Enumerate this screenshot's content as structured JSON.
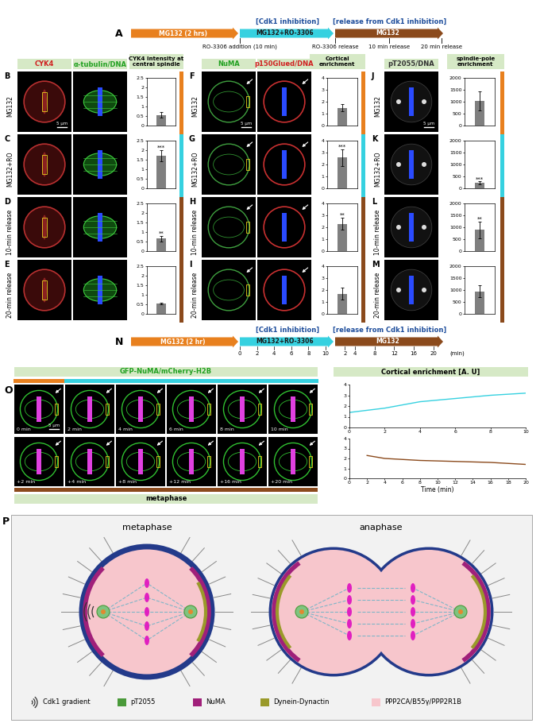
{
  "timeline_A": {
    "label": "A",
    "segments": [
      {
        "text": "MG132 (2 hrs)",
        "color": "#e8801e"
      },
      {
        "text": "MG132+RO-3306",
        "color": "#36d1e0"
      },
      {
        "text": "MG132",
        "color": "#8b4a1c"
      }
    ],
    "headers": [
      "[Cdk1 inhibition]",
      "[release from Cdk1 inhibition]"
    ],
    "events": [
      "RO-3306 addition (10 min)",
      "RO-3306 release",
      "10 min release",
      "20 min release"
    ]
  },
  "timeline_N": {
    "label": "N",
    "segments": [
      {
        "text": "MG132 (2 hr)",
        "color": "#e8801e"
      },
      {
        "text": "MG132+RO-3306",
        "color": "#36d1e0"
      },
      {
        "text": "MG132",
        "color": "#8b4a1c"
      }
    ],
    "headers": [
      "[Cdk1 inhibition]",
      "[release from Cdk1 inhibition]"
    ],
    "ticks_inhibition": [
      0,
      2,
      4,
      6,
      8,
      10
    ],
    "ticks_release": [
      2,
      4,
      8,
      12,
      16,
      20
    ],
    "unit": "(min)"
  },
  "chart_data": [
    {
      "type": "bar",
      "panels": [
        "B",
        "C",
        "D",
        "E"
      ],
      "image_headers": [
        "CYK4",
        "α-tubulin/DNA"
      ],
      "title": "CYK4 intensity at central spindle",
      "categories": [
        "MG132",
        "MG132+RO",
        "10-min release",
        "20-min release"
      ],
      "values": [
        0.55,
        1.7,
        0.65,
        0.55
      ],
      "errors": [
        0.15,
        0.3,
        0.15,
        0.05
      ],
      "annotations": [
        null,
        "***",
        "**",
        null
      ],
      "color": "#7f7f7f",
      "ylim": [
        0,
        2.5
      ],
      "yticks": [
        0,
        0.5,
        1,
        1.5,
        2,
        2.5
      ],
      "scale_bar": "5 μm"
    },
    {
      "type": "bar",
      "panels": [
        "F",
        "G",
        "H",
        "I"
      ],
      "image_headers": [
        "NuMA",
        "p150Glued/DNA"
      ],
      "title": "Cortical enrichment",
      "categories": [
        "MG132",
        "MG132+RO",
        "10-min release",
        "20-min release"
      ],
      "values": [
        1.5,
        2.6,
        2.3,
        1.7
      ],
      "errors": [
        0.3,
        0.7,
        0.5,
        0.5
      ],
      "annotations": [
        null,
        "***",
        "**",
        null
      ],
      "color": "#7f7f7f",
      "ylim": [
        0,
        4
      ],
      "yticks": [
        0,
        1,
        2,
        3,
        4
      ],
      "scale_bar": "5 μm"
    },
    {
      "type": "bar",
      "panels": [
        "J",
        "K",
        "L",
        "M"
      ],
      "image_headers": [
        "pT2055/DNA"
      ],
      "title": "spindle-pole enrichment",
      "categories": [
        "MG132",
        "MG132+RO",
        "10-min release",
        "20-min release"
      ],
      "values": [
        1050,
        230,
        900,
        950
      ],
      "errors": [
        400,
        60,
        350,
        250
      ],
      "annotations": [
        null,
        "***",
        "**",
        null
      ],
      "color": "#7f7f7f",
      "ylim": [
        0,
        2000
      ],
      "yticks": [
        0,
        500,
        1000,
        1500,
        2000
      ],
      "scale_bar": "5 μm"
    },
    {
      "type": "line",
      "title": "Cortical enrichment [A. U]",
      "x": [
        0,
        2,
        4,
        6,
        8,
        10
      ],
      "values": [
        1.4,
        1.8,
        2.4,
        2.7,
        3.0,
        3.2
      ],
      "color": "#36d1e0",
      "xlim": [
        0,
        10
      ],
      "xticks": [
        0,
        2,
        4,
        6,
        8,
        10
      ],
      "ylim": [
        0,
        4
      ],
      "yticks": [
        0,
        1,
        2,
        3,
        4
      ]
    },
    {
      "type": "line",
      "xlabel": "Time (min)",
      "x": [
        2,
        4,
        8,
        12,
        16,
        20
      ],
      "values": [
        2.3,
        2.0,
        1.8,
        1.7,
        1.6,
        1.4
      ],
      "color": "#8b4a1c",
      "xlim": [
        0,
        20
      ],
      "xticks": [
        0,
        2,
        4,
        6,
        8,
        10,
        12,
        14,
        16,
        18,
        20
      ],
      "ylim": [
        0,
        4
      ],
      "yticks": [
        0,
        1,
        2,
        3,
        4
      ]
    }
  ],
  "panel_O": {
    "label": "O",
    "header": "GFP-NuMA/mCherry-H2B",
    "times_top": [
      "0 min",
      "2 min",
      "4 min",
      "6 min",
      "8 min",
      "10 min"
    ],
    "times_bottom": [
      "+2 min",
      "+4 min",
      "+8 min",
      "+12 min",
      "+16 min",
      "+20 min"
    ],
    "scale_bar": "5 μm",
    "stage": "metaphase"
  },
  "panel_P": {
    "label": "P",
    "stages": [
      "metaphase",
      "anaphase"
    ],
    "legend": [
      {
        "text": "Cdk1 gradient",
        "color": "#333333"
      },
      {
        "text": "pT2055",
        "color": "#4a9a3a"
      },
      {
        "text": "NuMA",
        "color": "#a0207a"
      },
      {
        "text": "Dynein-Dynactin",
        "color": "#9a9a2a"
      },
      {
        "text": "PPP2CA/B55γ/PPP2R1B",
        "color": "#f7c6cc"
      }
    ]
  }
}
